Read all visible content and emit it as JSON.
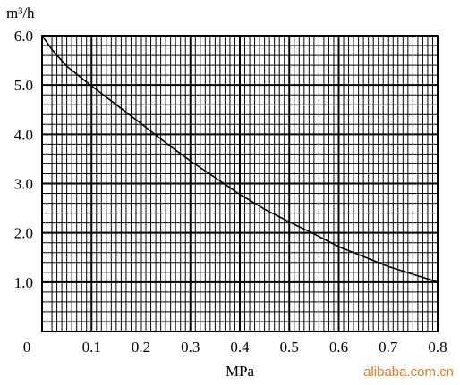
{
  "chart_data": {
    "type": "line",
    "title": "",
    "xlabel": "MPa",
    "ylabel": "",
    "y_unit": "m³/h",
    "origin_label": "0",
    "xlim": [
      0,
      0.8
    ],
    "ylim": [
      0,
      6.0
    ],
    "x_ticks": [
      "0.1",
      "0.2",
      "0.3",
      "0.4",
      "0.5",
      "0.6",
      "0.7",
      "0.8"
    ],
    "y_ticks": [
      "1.0",
      "2.0",
      "3.0",
      "4.0",
      "5.0",
      "6.0"
    ],
    "grid": true,
    "series": [
      {
        "x": [
          0,
          0.02,
          0.05,
          0.1,
          0.15,
          0.2,
          0.25,
          0.3,
          0.35,
          0.4,
          0.45,
          0.5,
          0.55,
          0.6,
          0.65,
          0.7,
          0.75,
          0.8
        ],
        "values": [
          6.0,
          5.72,
          5.38,
          4.98,
          4.6,
          4.22,
          3.83,
          3.46,
          3.12,
          2.78,
          2.48,
          2.22,
          1.98,
          1.72,
          1.52,
          1.32,
          1.16,
          1.0
        ]
      }
    ]
  },
  "watermark": "alibaba.com.cn"
}
